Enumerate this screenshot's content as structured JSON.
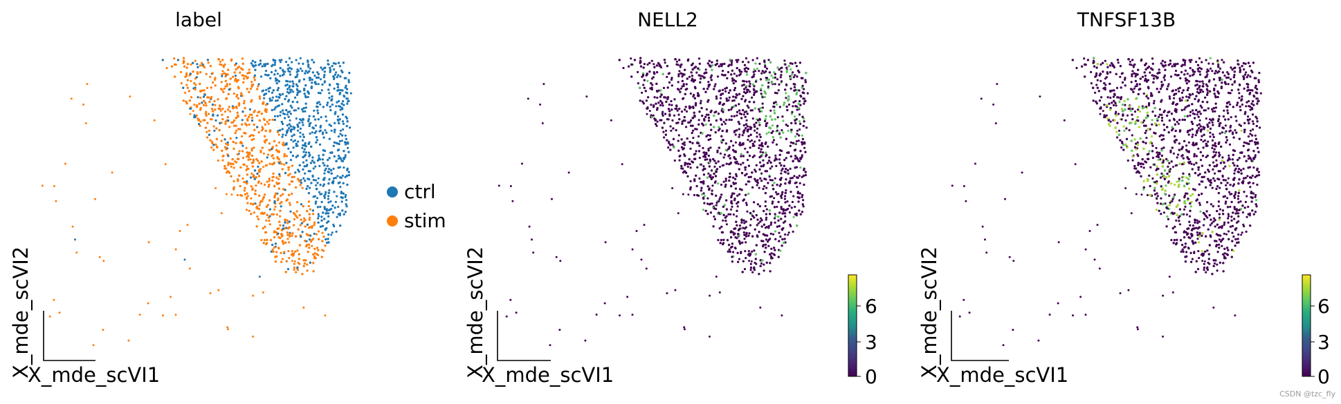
{
  "chart_data": [
    {
      "type": "scatter",
      "title": "label",
      "xlabel": "X_mde_scVI1",
      "ylabel": "X_mde_scVI2",
      "color_by": "category",
      "legend_placement": "right",
      "series": [
        {
          "name": "ctrl",
          "color": "#1f77b4"
        },
        {
          "name": "stim",
          "color": "#ff7f0e"
        }
      ]
    },
    {
      "type": "scatter",
      "title": "NELL2",
      "xlabel": "X_mde_scVI1",
      "ylabel": "X_mde_scVI2",
      "color_by": "expression",
      "colormap": "viridis",
      "colorbar": {
        "ticks": [
          "0",
          "3",
          "6"
        ],
        "range": [
          0,
          8
        ]
      }
    },
    {
      "type": "scatter",
      "title": "TNFSF13B",
      "xlabel": "X_mde_scVI1",
      "ylabel": "X_mde_scVI2",
      "color_by": "expression",
      "colormap": "viridis",
      "colorbar": {
        "ticks": [
          "0",
          "3",
          "6"
        ],
        "range": [
          0,
          8
        ]
      }
    }
  ],
  "watermark": "CSDN @tzc_fly"
}
